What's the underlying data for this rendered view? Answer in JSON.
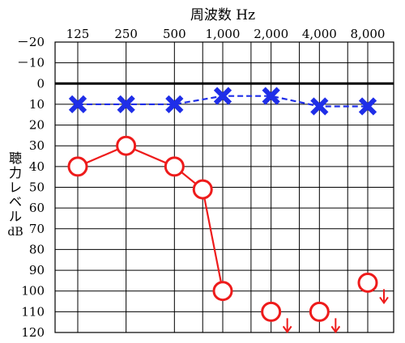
{
  "chart_data": {
    "type": "line",
    "title": "周波数 Hz",
    "xlabel": "周波数 Hz",
    "ylabel_chars": [
      "聴",
      "力",
      "レ",
      "ベ",
      "ル"
    ],
    "ylabel_unit": "dB",
    "ylabel": "聴力レベル dB",
    "y_inverted": true,
    "ylim": [
      -20,
      120
    ],
    "ytick_labels": [
      "－20",
      "－10",
      "0",
      "10",
      "20",
      "30",
      "40",
      "50",
      "60",
      "70",
      "80",
      "90",
      "100",
      "110",
      "120"
    ],
    "x_scale": "log2",
    "categories": [
      "125",
      "250",
      "500",
      "1,000",
      "2,000",
      "4,000",
      "8,000"
    ],
    "x": [
      125,
      250,
      500,
      1000,
      2000,
      4000,
      8000
    ],
    "grid": true,
    "reference_line_y": 0,
    "series": [
      {
        "marker": "cross",
        "line_style": "dashed",
        "color": "#1f2ee8",
        "points": [
          {
            "x": 125,
            "y": 10
          },
          {
            "x": 250,
            "y": 10
          },
          {
            "x": 500,
            "y": 10
          },
          {
            "x": 1000,
            "y": 6
          },
          {
            "x": 2000,
            "y": 6
          },
          {
            "x": 4000,
            "y": 11
          },
          {
            "x": 8000,
            "y": 11
          }
        ]
      },
      {
        "marker": "circle",
        "line_style": "solid",
        "color": "#ee1b1b",
        "points": [
          {
            "x": 125,
            "y": 40,
            "connected": true
          },
          {
            "x": 250,
            "y": 30,
            "connected": true
          },
          {
            "x": 500,
            "y": 40,
            "connected": true
          },
          {
            "x": 750,
            "y": 51,
            "connected": true
          },
          {
            "x": 1000,
            "y": 100,
            "connected": true
          },
          {
            "x": 2000,
            "y": 110,
            "connected": false,
            "no_response": true
          },
          {
            "x": 4000,
            "y": 110,
            "connected": false,
            "no_response": true
          },
          {
            "x": 8000,
            "y": 96,
            "connected": false,
            "no_response": true
          }
        ]
      }
    ]
  }
}
